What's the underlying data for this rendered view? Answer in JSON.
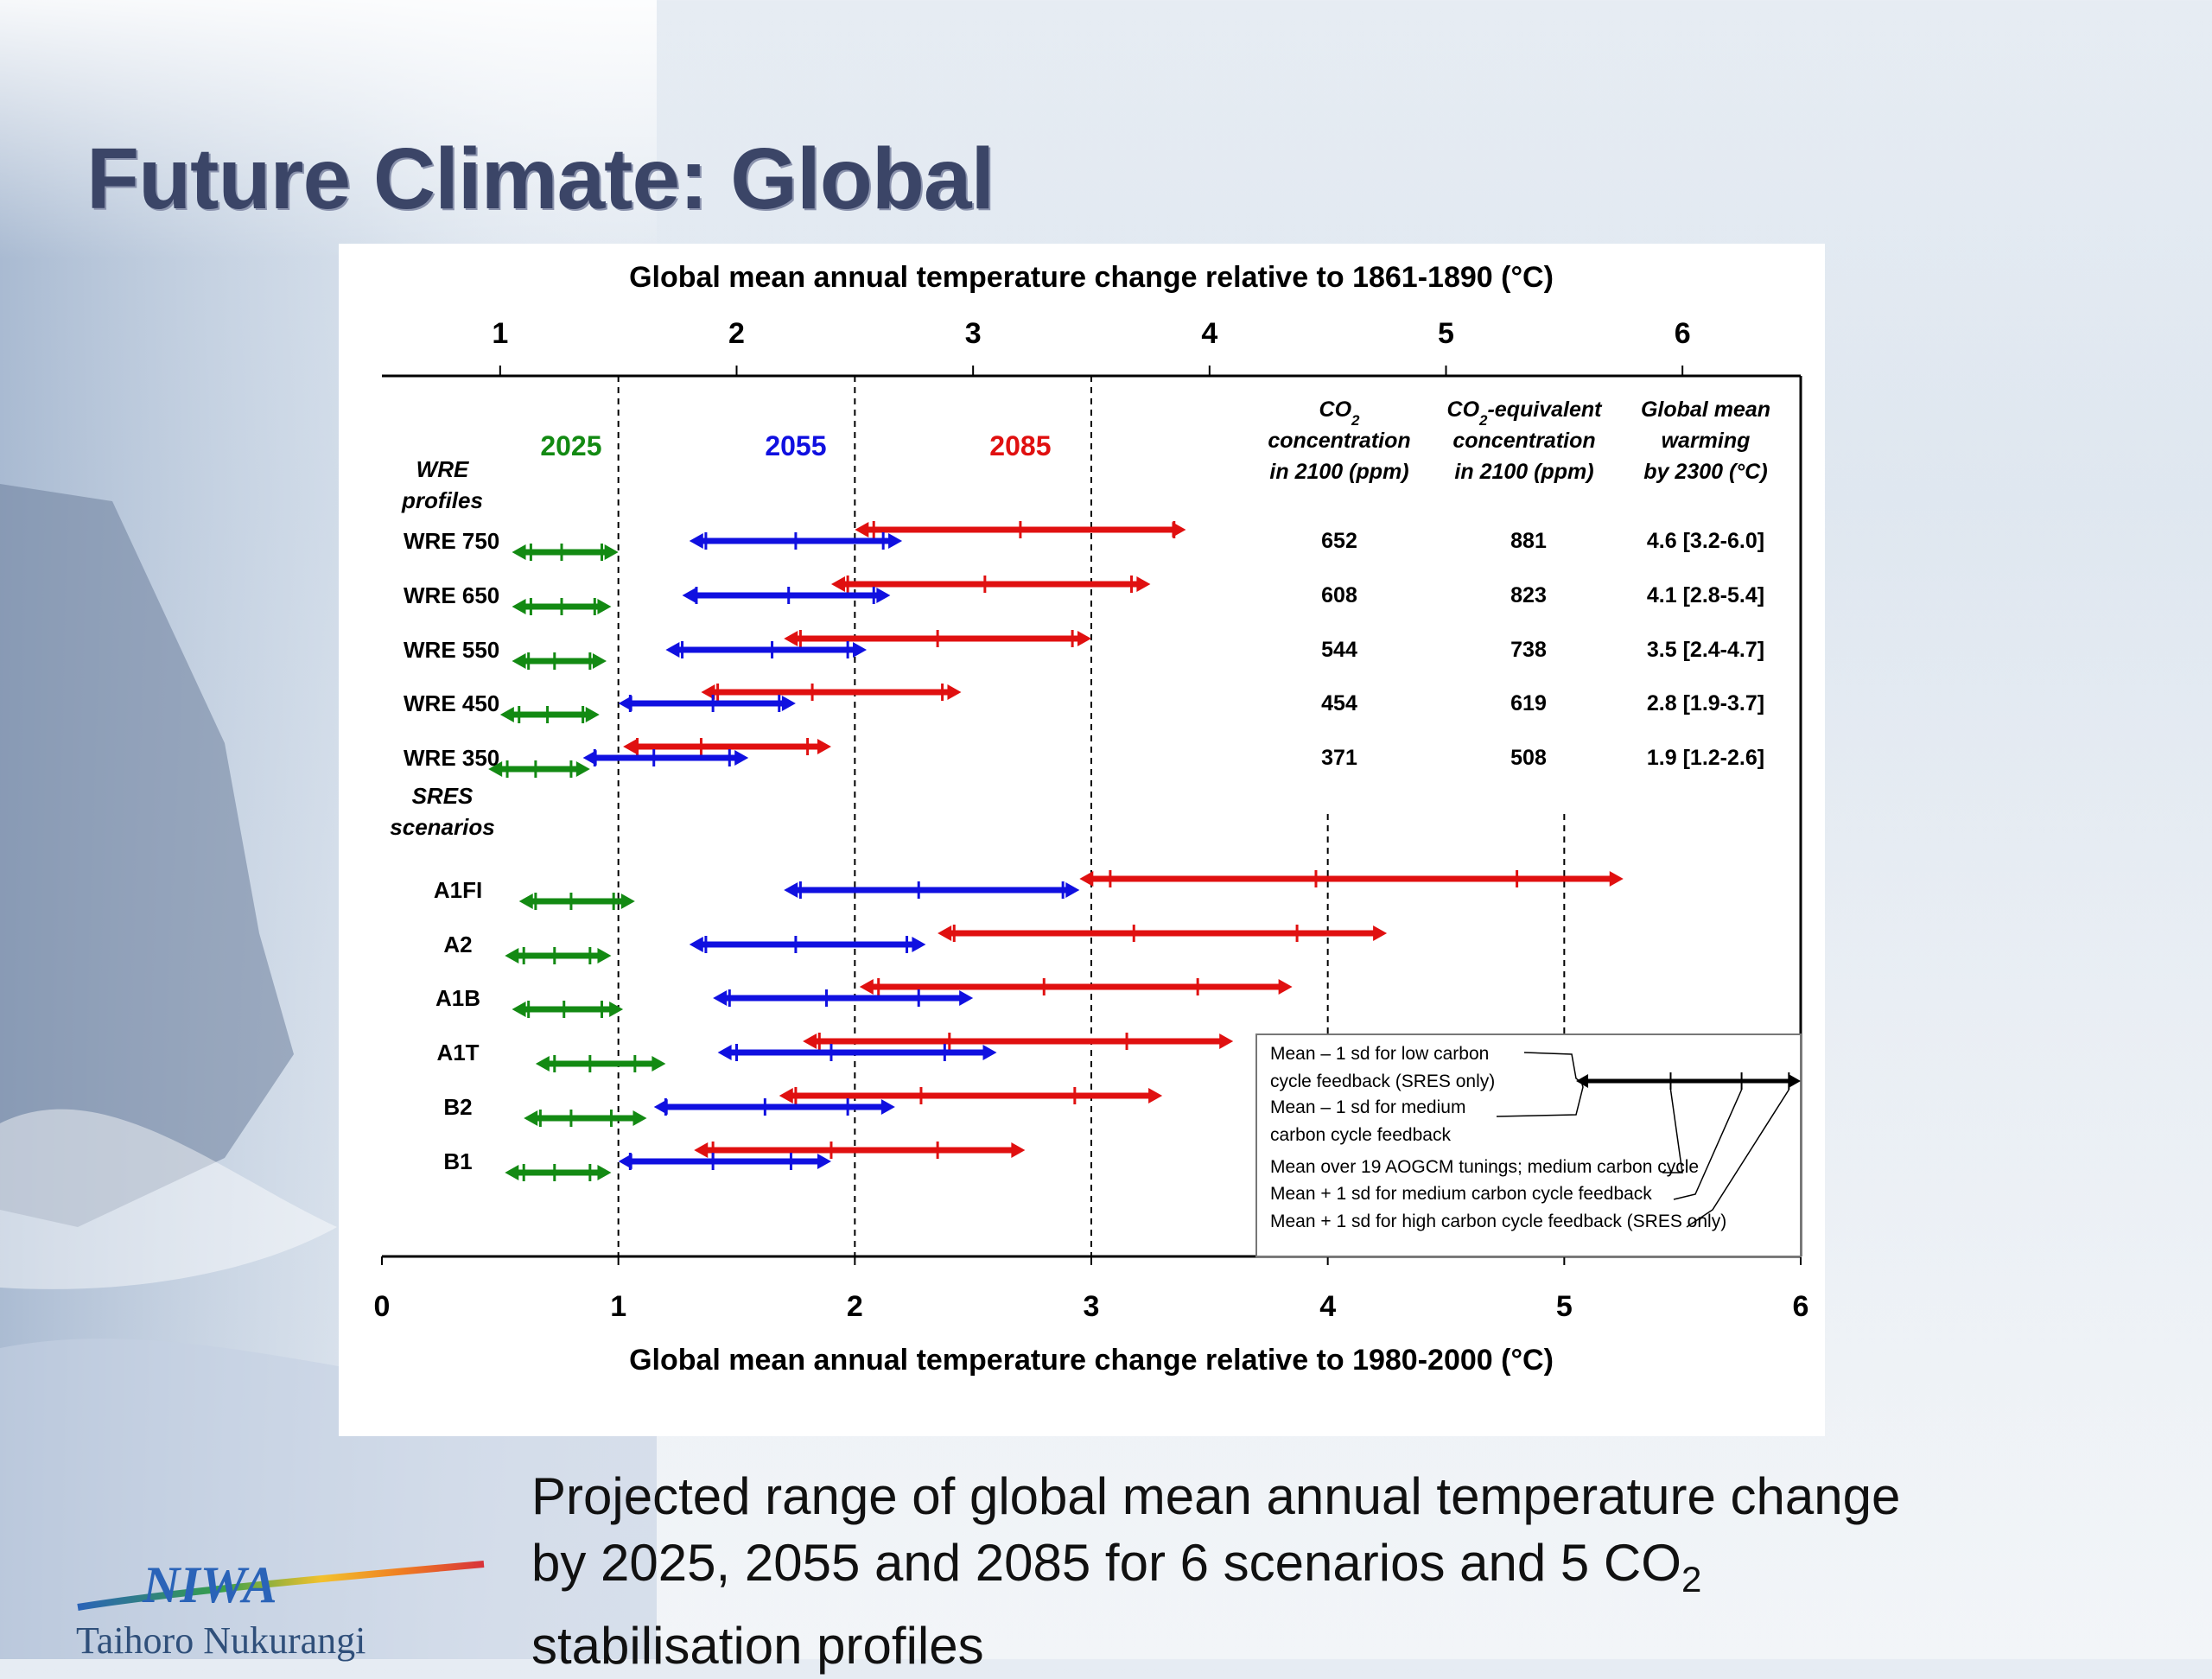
{
  "page": {
    "title": "Future Climate: Global",
    "caption_line1": "Projected range of global mean annual temperature change",
    "caption_line2a": "by 2025, 2055 and 2085 for 6 scenarios and 5 CO",
    "caption_sub": "2",
    "caption_line3": "stabilisation profiles",
    "logo_brand": "NIWA",
    "logo_tagline": "Taihoro Nukurangi"
  },
  "colors": {
    "title": "#3b4567",
    "y2025": "#138a13",
    "y2055": "#1010e0",
    "y2085": "#e01010"
  },
  "chart_data": {
    "type": "range-bar",
    "top_axis_title": "Global mean annual temperature change relative to 1861-1890 (°C)",
    "bottom_axis_title": "Global mean annual temperature change relative to 1980-2000 (°C)",
    "top_ticks": [
      "1",
      "2",
      "3",
      "4",
      "5",
      "6"
    ],
    "top_tick_values": [
      0.5,
      1.5,
      2.5,
      3.5,
      4.5,
      5.5
    ],
    "bottom_ticks": [
      "0",
      "1",
      "2",
      "3",
      "4",
      "5",
      "6"
    ],
    "xlim": [
      0,
      6
    ],
    "series_labels": [
      {
        "key": "y2025",
        "label": "2025",
        "center": 0.8
      },
      {
        "key": "y2055",
        "label": "2055",
        "center": 1.75
      },
      {
        "key": "y2085",
        "label": "2085",
        "center": 2.7
      }
    ],
    "group_labels": [
      {
        "line1": "WRE",
        "line2": "profiles"
      },
      {
        "line1": "SRES",
        "line2": "scenarios"
      }
    ],
    "col_headers": [
      {
        "line1": "CO",
        "sub": "2",
        "line2": "concentration",
        "line3": "in 2100 (ppm)"
      },
      {
        "line1": "CO",
        "sub": "2",
        "line1b": "-equivalent",
        "line2": "concentration",
        "line3": "in 2100 (ppm)"
      },
      {
        "line1": "Global mean",
        "line2": "warming",
        "line3": "by 2300 (°C)"
      }
    ],
    "rows": [
      {
        "label": "WRE 750",
        "group": "WRE",
        "y2025": [
          0.55,
          0.63,
          0.76,
          0.93,
          1.0
        ],
        "y2055": [
          1.3,
          1.37,
          1.75,
          2.12,
          2.2
        ],
        "y2085": [
          2.0,
          2.08,
          2.7,
          3.35,
          3.4
        ],
        "co2": "652",
        "co2eq": "881",
        "warming": "4.6 [3.2-6.0]"
      },
      {
        "label": "WRE 650",
        "group": "WRE",
        "y2025": [
          0.55,
          0.63,
          0.76,
          0.9,
          0.97
        ],
        "y2055": [
          1.27,
          1.33,
          1.72,
          2.08,
          2.15
        ],
        "y2085": [
          1.9,
          1.97,
          2.55,
          3.17,
          3.25
        ],
        "co2": "608",
        "co2eq": "823",
        "warming": "4.1 [2.8-5.4]"
      },
      {
        "label": "WRE 550",
        "group": "WRE",
        "y2025": [
          0.55,
          0.62,
          0.73,
          0.88,
          0.95
        ],
        "y2055": [
          1.2,
          1.27,
          1.65,
          1.97,
          2.05
        ],
        "y2085": [
          1.7,
          1.77,
          2.35,
          2.92,
          3.0
        ],
        "co2": "544",
        "co2eq": "738",
        "warming": "3.5 [2.4-4.7]"
      },
      {
        "label": "WRE 450",
        "group": "WRE",
        "y2025": [
          0.5,
          0.58,
          0.7,
          0.85,
          0.92
        ],
        "y2055": [
          1.0,
          1.05,
          1.4,
          1.68,
          1.75
        ],
        "y2085": [
          1.35,
          1.42,
          1.82,
          2.37,
          2.45
        ],
        "co2": "454",
        "co2eq": "619",
        "warming": "2.8 [1.9-3.7]"
      },
      {
        "label": "WRE 350",
        "group": "WRE",
        "y2025": [
          0.45,
          0.53,
          0.65,
          0.8,
          0.88
        ],
        "y2055": [
          0.85,
          0.9,
          1.15,
          1.47,
          1.55
        ],
        "y2085": [
          1.02,
          1.08,
          1.35,
          1.8,
          1.9
        ],
        "co2": "371",
        "co2eq": "508",
        "warming": "1.9 [1.2-2.6]"
      },
      {
        "label": "A1FI",
        "group": "SRES",
        "y2025": [
          0.58,
          0.65,
          0.8,
          0.98,
          1.07
        ],
        "y2055": [
          1.7,
          1.77,
          2.27,
          2.88,
          2.95
        ],
        "y2085": [
          2.95,
          3.08,
          3.95,
          4.8,
          5.25
        ],
        "co2": "",
        "co2eq": "",
        "warming": ""
      },
      {
        "label": "A2",
        "group": "SRES",
        "y2025": [
          0.52,
          0.6,
          0.73,
          0.88,
          0.97
        ],
        "y2055": [
          1.3,
          1.37,
          1.75,
          2.22,
          2.3
        ],
        "y2085": [
          2.35,
          2.42,
          3.18,
          3.87,
          4.25
        ],
        "co2": "",
        "co2eq": "",
        "warming": ""
      },
      {
        "label": "A1B",
        "group": "SRES",
        "y2025": [
          0.55,
          0.62,
          0.77,
          0.93,
          1.02
        ],
        "y2055": [
          1.4,
          1.47,
          1.88,
          2.27,
          2.5
        ],
        "y2085": [
          2.02,
          2.1,
          2.8,
          3.45,
          3.85
        ],
        "co2": "",
        "co2eq": "",
        "warming": ""
      },
      {
        "label": "A1T",
        "group": "SRES",
        "y2025": [
          0.65,
          0.73,
          0.88,
          1.07,
          1.2
        ],
        "y2055": [
          1.42,
          1.5,
          1.9,
          2.38,
          2.6
        ],
        "y2085": [
          1.78,
          1.85,
          2.4,
          3.15,
          3.6
        ],
        "co2": "",
        "co2eq": "",
        "warming": ""
      },
      {
        "label": "B2",
        "group": "SRES",
        "y2025": [
          0.6,
          0.67,
          0.8,
          0.97,
          1.12
        ],
        "y2055": [
          1.15,
          1.2,
          1.62,
          1.97,
          2.17
        ],
        "y2085": [
          1.68,
          1.75,
          2.28,
          2.93,
          3.3
        ],
        "co2": "",
        "co2eq": "",
        "warming": ""
      },
      {
        "label": "B1",
        "group": "SRES",
        "y2025": [
          0.52,
          0.6,
          0.73,
          0.88,
          0.97
        ],
        "y2055": [
          1.0,
          1.05,
          1.4,
          1.73,
          1.9
        ],
        "y2085": [
          1.32,
          1.4,
          1.9,
          2.35,
          2.72
        ],
        "co2": "",
        "co2eq": "",
        "warming": ""
      }
    ],
    "legend": {
      "items": [
        "Mean – 1 sd for low  carbon",
        "cycle feedback (SRES only)",
        "Mean – 1 sd for medium",
        "carbon cycle feedback",
        "Mean over 19 AOGCM tunings; medium carbon cycle",
        "Mean + 1 sd for medium carbon cycle feedback",
        "Mean + 1 sd for high carbon cycle feedback (SRES only)"
      ],
      "example_range": [
        5.05,
        5.45,
        5.75,
        5.95,
        6.0
      ]
    }
  }
}
